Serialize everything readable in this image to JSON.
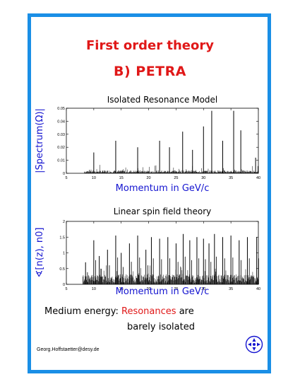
{
  "title_line1": "First order theory",
  "title_line2": "B) PETRA",
  "colors": {
    "frame": "#1a8fe6",
    "title": "#e01818",
    "axis_label": "#1414d0",
    "ylabel_green": "#1fb81f"
  },
  "chart_data": [
    {
      "type": "line",
      "title": "Isolated Resonance Model",
      "xlabel": "Momentum in GeV/c",
      "ylabel": "|Spectrum(Ω)|",
      "xlim": [
        5,
        40
      ],
      "ylim": [
        0,
        0.05
      ],
      "xticks": [
        "5",
        "10",
        "15",
        "20",
        "25",
        "30",
        "35",
        "40"
      ],
      "yticks": [
        "0",
        "0.01",
        "0.02",
        "0.03",
        "0.04",
        "0.05"
      ],
      "peaks": [
        {
          "x": 10.0,
          "y": 0.016
        },
        {
          "x": 14.0,
          "y": 0.025
        },
        {
          "x": 18.0,
          "y": 0.02
        },
        {
          "x": 22.0,
          "y": 0.025
        },
        {
          "x": 23.8,
          "y": 0.02
        },
        {
          "x": 26.2,
          "y": 0.032
        },
        {
          "x": 28.0,
          "y": 0.018
        },
        {
          "x": 30.0,
          "y": 0.036
        },
        {
          "x": 31.5,
          "y": 0.048
        },
        {
          "x": 33.5,
          "y": 0.025
        },
        {
          "x": 35.5,
          "y": 0.048
        },
        {
          "x": 36.8,
          "y": 0.033
        },
        {
          "x": 39.5,
          "y": 0.012
        }
      ]
    },
    {
      "type": "line",
      "title": "Linear spin field theory",
      "xlabel": "Momentum in GeV/c",
      "ylabel": "∢[n(z), n0]",
      "xlim": [
        5,
        40
      ],
      "ylim": [
        0,
        2
      ],
      "xticks": [
        "5",
        "10",
        "15",
        "20",
        "25",
        "30",
        "35",
        "40"
      ],
      "yticks": [
        "0",
        "0.5",
        "1",
        "1.5",
        "2"
      ],
      "peaks": [
        {
          "x": 8.5,
          "y": 0.7
        },
        {
          "x": 10.0,
          "y": 1.4
        },
        {
          "x": 11.0,
          "y": 0.9
        },
        {
          "x": 12.5,
          "y": 1.1
        },
        {
          "x": 14.0,
          "y": 1.55
        },
        {
          "x": 15.0,
          "y": 1.0
        },
        {
          "x": 16.5,
          "y": 1.3
        },
        {
          "x": 18.0,
          "y": 1.55
        },
        {
          "x": 19.5,
          "y": 1.1
        },
        {
          "x": 20.5,
          "y": 1.5
        },
        {
          "x": 22.0,
          "y": 1.45
        },
        {
          "x": 23.5,
          "y": 1.5
        },
        {
          "x": 25.0,
          "y": 1.3
        },
        {
          "x": 26.3,
          "y": 1.6
        },
        {
          "x": 27.5,
          "y": 1.4
        },
        {
          "x": 28.8,
          "y": 1.5
        },
        {
          "x": 30.0,
          "y": 1.45
        },
        {
          "x": 31.0,
          "y": 1.3
        },
        {
          "x": 32.0,
          "y": 1.6
        },
        {
          "x": 33.5,
          "y": 1.5
        },
        {
          "x": 35.0,
          "y": 1.55
        },
        {
          "x": 36.5,
          "y": 1.4
        },
        {
          "x": 38.0,
          "y": 1.5
        },
        {
          "x": 39.7,
          "y": 1.5
        }
      ]
    }
  ],
  "caption_line1_prefix": "Medium energy:",
  "caption_highlight": "Resonances",
  "caption_line1_suffix": "are",
  "caption_line2": "barely isolated",
  "signature": "Georg.Hoffstaetter@desy.de",
  "logo_text": "DESY"
}
